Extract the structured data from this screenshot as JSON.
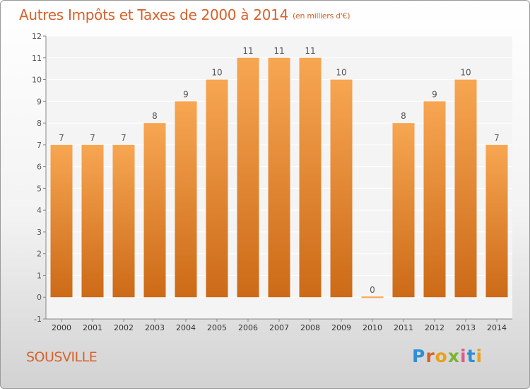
{
  "header": {
    "title": "Autres Impôts et Taxes de 2000 à 2014",
    "unit": "(en milliers d'€)"
  },
  "footer": {
    "place": "SOUSVILLE",
    "logo": "Proxiti"
  },
  "colors": {
    "title": "#d8612a",
    "bar_top": "#f7a652",
    "bar_bottom": "#cc6a17",
    "logo_letters": [
      "#2e8fd6",
      "#d8612a",
      "#e8a21c",
      "#7ab430",
      "#e05a8a",
      "#2e8fd6",
      "#e8a21c"
    ]
  },
  "chart_data": {
    "type": "bar",
    "title": "Autres Impôts et Taxes de 2000 à 2014",
    "subtitle": "(en milliers d'€)",
    "categories": [
      "2000",
      "2001",
      "2002",
      "2003",
      "2004",
      "2005",
      "2006",
      "2007",
      "2008",
      "2009",
      "2010",
      "2011",
      "2012",
      "2013",
      "2014"
    ],
    "values": [
      7,
      7,
      7,
      8,
      9,
      10,
      11,
      11,
      11,
      10,
      0,
      8,
      9,
      10,
      7
    ],
    "data_labels": [
      "7",
      "7",
      "7",
      "8",
      "9",
      "10",
      "11",
      "11",
      "11",
      "10",
      "0",
      "8",
      "9",
      "10",
      "7"
    ],
    "ylim": [
      -1,
      12
    ],
    "yticks": [
      -1,
      0,
      1,
      2,
      3,
      4,
      5,
      6,
      7,
      8,
      9,
      10,
      11,
      12
    ],
    "ytick_labels": [
      "-1",
      "0",
      "1",
      "2",
      "3",
      "4",
      "5",
      "6",
      "7",
      "8",
      "9",
      "10",
      "11",
      "12"
    ],
    "grid": true,
    "legend": "none"
  }
}
